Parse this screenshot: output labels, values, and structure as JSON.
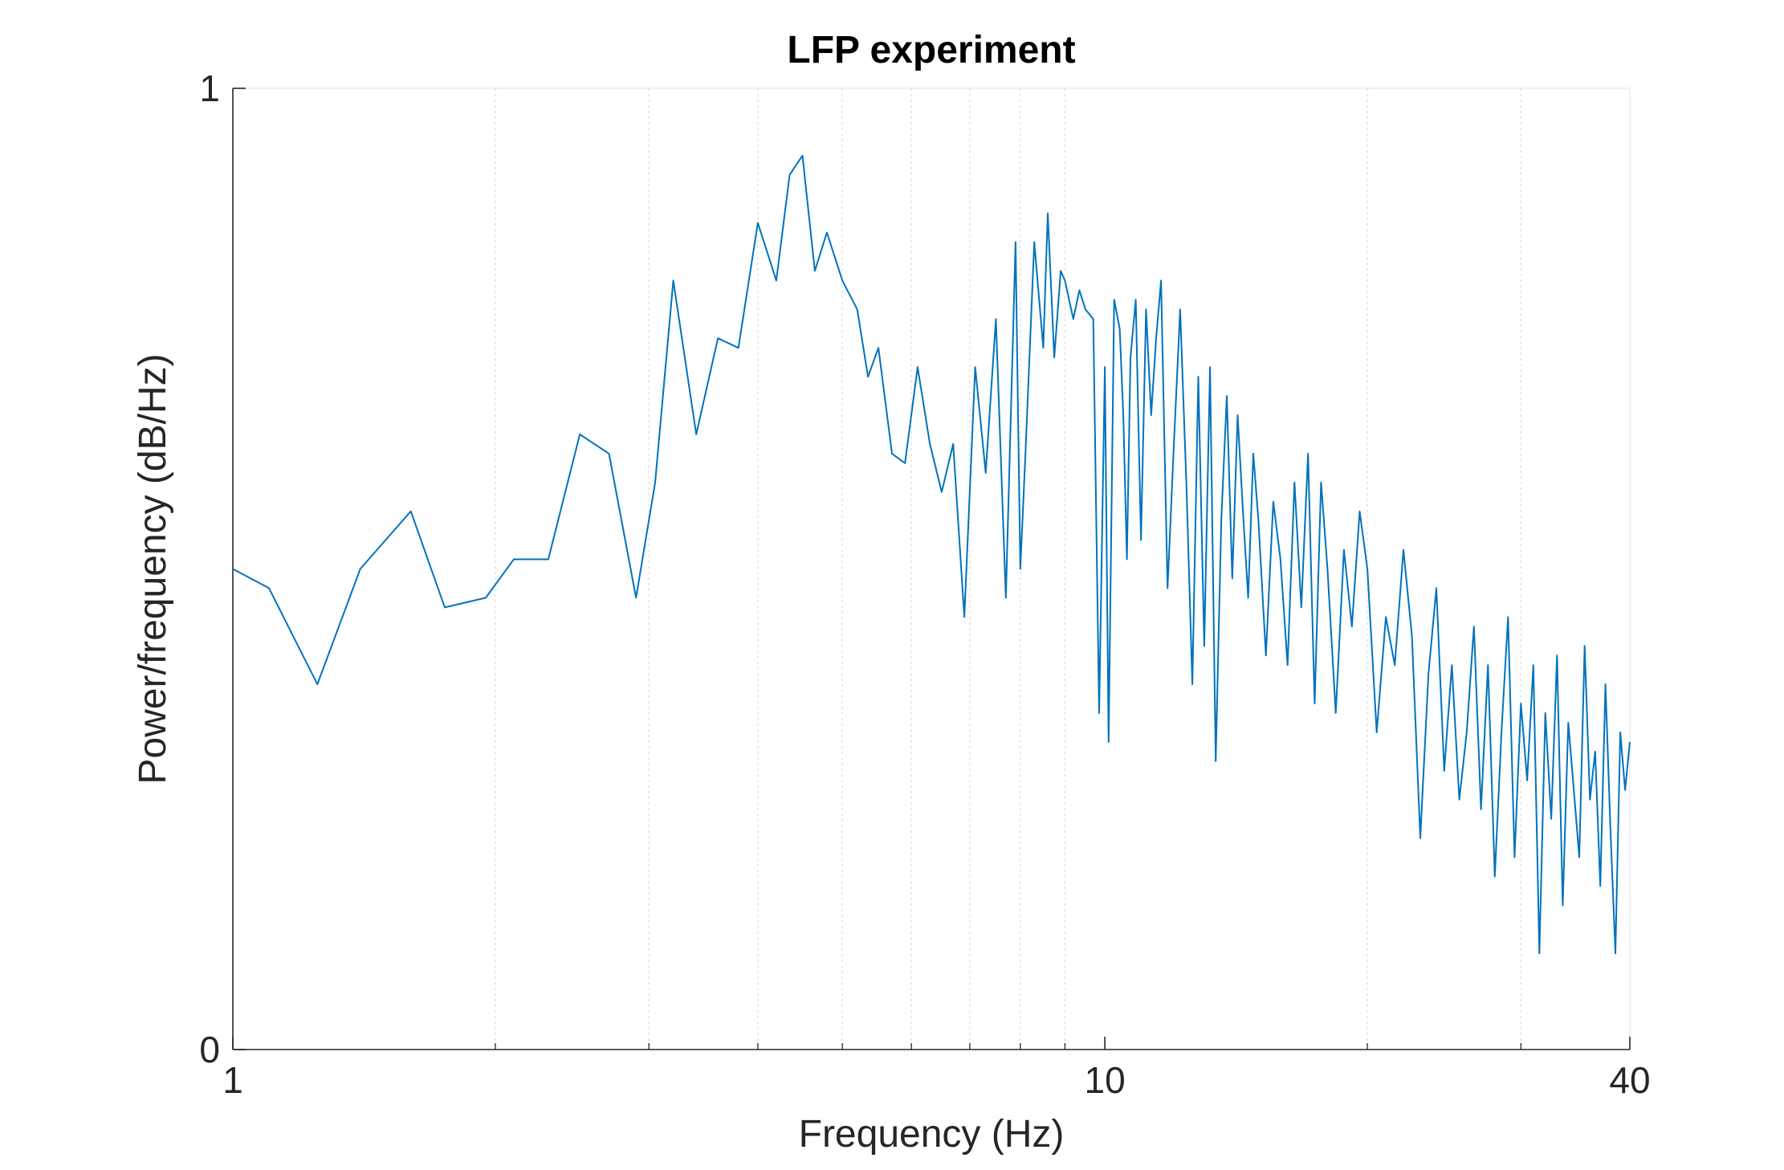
{
  "colors": {
    "line": "#0072BD",
    "axis": "#262626",
    "grid": "#DFDFDF",
    "background": "#FFFFFF"
  },
  "chart_data": {
    "type": "line",
    "title": "LFP experiment",
    "xlabel": "Frequency (Hz)",
    "ylabel": "Power/frequency (dB/Hz)",
    "xscale": "log",
    "xlim": [
      1,
      40
    ],
    "ylim": [
      0,
      1
    ],
    "xticks": [
      1,
      10,
      40
    ],
    "xtick_labels": [
      "1",
      "10",
      "40"
    ],
    "yticks": [
      0,
      1
    ],
    "ytick_labels": [
      "0",
      "1"
    ],
    "grid": "x-minor",
    "minor_grid_x": [
      2,
      3,
      4,
      5,
      6,
      7,
      8,
      9
    ],
    "series": [
      {
        "x": [
          1.0,
          1.1,
          1.25,
          1.4,
          1.6,
          1.75,
          1.95,
          2.1,
          2.3,
          2.5,
          2.7,
          2.9,
          3.05,
          3.2,
          3.4,
          3.6,
          3.8,
          4.0,
          4.2,
          4.35,
          4.5,
          4.65,
          4.8,
          5.0,
          5.2,
          5.35,
          5.5,
          5.7,
          5.9,
          6.1,
          6.3,
          6.5,
          6.7,
          6.9,
          7.1,
          7.3,
          7.5,
          7.7,
          7.9,
          8.0,
          8.1,
          8.3,
          8.5,
          8.6,
          8.75,
          8.9,
          9.0,
          9.2,
          9.35,
          9.5,
          9.7,
          9.85,
          10.0,
          10.1,
          10.25,
          10.4,
          10.5,
          10.6,
          10.7,
          10.85,
          11.0,
          11.15,
          11.3,
          11.45,
          11.6,
          11.8,
          12.0,
          12.2,
          12.4,
          12.6,
          12.8,
          13.0,
          13.2,
          13.4,
          13.6,
          13.8,
          14.0,
          14.2,
          14.4,
          14.6,
          14.8,
          15.0,
          15.3,
          15.6,
          15.9,
          16.2,
          16.5,
          16.8,
          17.1,
          17.4,
          17.7,
          18.0,
          18.4,
          18.8,
          19.2,
          19.6,
          20.0,
          20.5,
          21.0,
          21.5,
          22.0,
          22.5,
          23.0,
          23.5,
          24.0,
          24.5,
          25.0,
          25.5,
          26.0,
          26.5,
          27.0,
          27.5,
          28.0,
          28.5,
          29.0,
          29.5,
          30.0,
          30.5,
          31.0,
          31.5,
          32.0,
          32.5,
          33.0,
          33.5,
          34.0,
          34.5,
          35.0,
          35.5,
          36.0,
          36.5,
          37.0,
          37.5,
          38.0,
          38.5,
          39.0,
          39.5,
          40.0
        ],
        "values": [
          0.5,
          0.48,
          0.38,
          0.5,
          0.56,
          0.46,
          0.47,
          0.51,
          0.51,
          0.64,
          0.62,
          0.47,
          0.59,
          0.8,
          0.64,
          0.74,
          0.73,
          0.86,
          0.8,
          0.91,
          0.93,
          0.81,
          0.85,
          0.8,
          0.77,
          0.7,
          0.73,
          0.62,
          0.61,
          0.71,
          0.63,
          0.58,
          0.63,
          0.45,
          0.71,
          0.6,
          0.76,
          0.47,
          0.84,
          0.5,
          0.61,
          0.84,
          0.73,
          0.87,
          0.72,
          0.81,
          0.8,
          0.76,
          0.79,
          0.77,
          0.76,
          0.35,
          0.71,
          0.32,
          0.78,
          0.75,
          0.66,
          0.51,
          0.72,
          0.78,
          0.53,
          0.77,
          0.66,
          0.74,
          0.8,
          0.48,
          0.63,
          0.77,
          0.59,
          0.38,
          0.7,
          0.42,
          0.71,
          0.3,
          0.55,
          0.68,
          0.49,
          0.66,
          0.56,
          0.47,
          0.62,
          0.55,
          0.41,
          0.57,
          0.51,
          0.4,
          0.59,
          0.46,
          0.62,
          0.36,
          0.59,
          0.5,
          0.35,
          0.52,
          0.44,
          0.56,
          0.5,
          0.33,
          0.45,
          0.4,
          0.52,
          0.43,
          0.22,
          0.39,
          0.48,
          0.29,
          0.4,
          0.26,
          0.33,
          0.44,
          0.25,
          0.4,
          0.18,
          0.33,
          0.45,
          0.2,
          0.36,
          0.28,
          0.4,
          0.1,
          0.35,
          0.24,
          0.41,
          0.15,
          0.34,
          0.27,
          0.2,
          0.42,
          0.26,
          0.31,
          0.17,
          0.38,
          0.23,
          0.1,
          0.33,
          0.27,
          0.32
        ]
      }
    ]
  }
}
